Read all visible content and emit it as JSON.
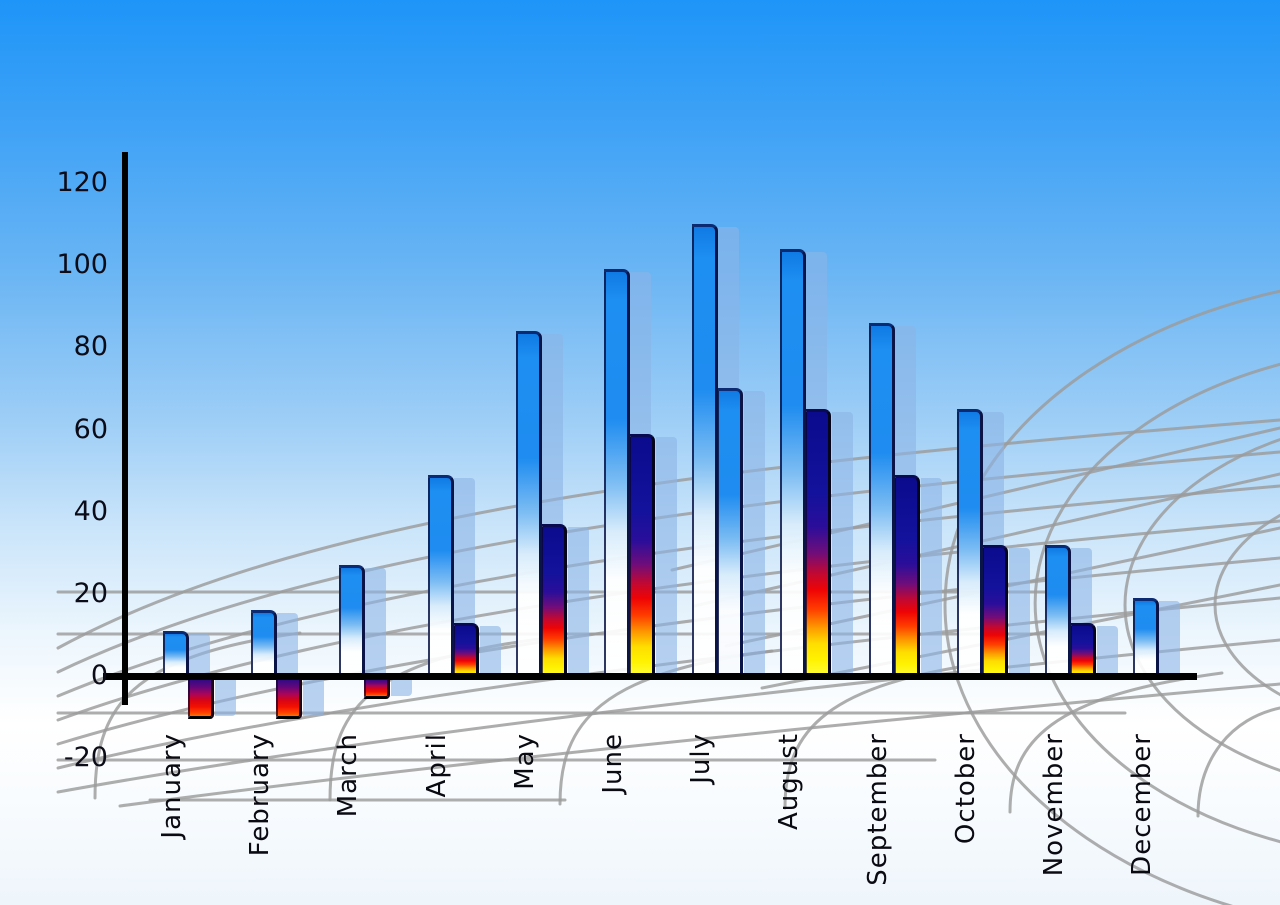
{
  "page": {
    "title": "",
    "description": "3D style monthly bar chart over sky background with curved perspective ground grid"
  },
  "chart_data": {
    "type": "bar",
    "title": "",
    "xlabel": "",
    "ylabel": "",
    "categories": [
      "January",
      "February",
      "March",
      "April",
      "May",
      "June",
      "July",
      "August",
      "September",
      "October",
      "November",
      "December"
    ],
    "series": [
      {
        "name": "primary-blue-bars",
        "values": [
          11,
          16,
          27,
          49,
          84,
          99,
          110,
          104,
          86,
          65,
          32,
          19
        ]
      },
      {
        "name": "secondary-flame-bars",
        "values": [
          -10,
          -10,
          -5,
          13,
          37,
          59,
          70,
          65,
          49,
          32,
          13,
          null
        ]
      }
    ],
    "ylim": [
      -20,
      120
    ],
    "y_ticks": [
      120,
      100,
      80,
      60,
      40,
      20,
      0,
      -20
    ],
    "grid": "decorative curved perspective ground grid, gray",
    "legend_position": "none",
    "style_notes": {
      "bars_have_offset_translucent_echo": true,
      "secondary_bar_july_style": "blue-white gradient instead of flame gradient",
      "secondary_bar_december": "absent",
      "negative_value_months": [
        "January",
        "February",
        "March"
      ]
    }
  },
  "colors": {
    "sky_top": "#1e95f8",
    "sky_bottom": "#eef5fb",
    "bar_blue_top": "#1787ee",
    "bar_blue_bottom": "#ffffff",
    "flame_navy": "#0d0d96",
    "flame_red": "#ee0404",
    "flame_yellow": "#fff200",
    "echo_bar": "rgba(140,180,230,0.6)",
    "grid_gray": "#9b9b9b",
    "axis": "#000000",
    "labels": "#0c0c18"
  }
}
